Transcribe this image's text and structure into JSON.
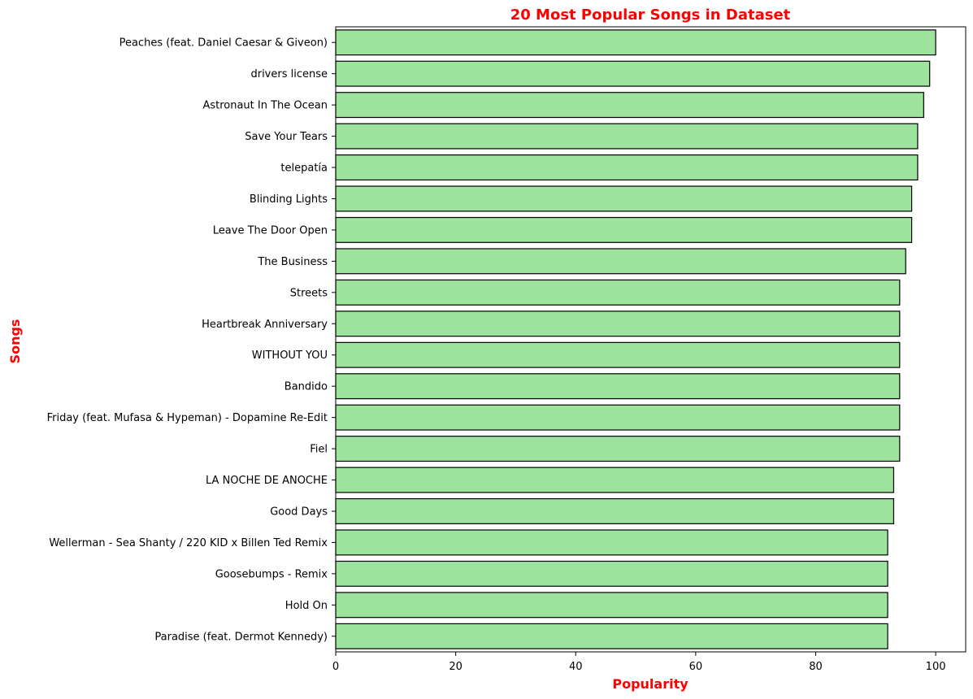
{
  "chart_data": {
    "type": "bar",
    "orientation": "horizontal",
    "title": "20 Most Popular Songs in Dataset",
    "xlabel": "Popularity",
    "ylabel": "Songs",
    "xlim": [
      0,
      105
    ],
    "xticks": [
      0,
      20,
      40,
      60,
      80,
      100
    ],
    "grid": false,
    "bar_color": "#9de39d",
    "edge_color": "#000000",
    "title_color": "#ff0000",
    "categories": [
      "Peaches (feat. Daniel Caesar & Giveon)",
      "drivers license",
      "Astronaut In The Ocean",
      "Save Your Tears",
      "telepatía",
      "Blinding Lights",
      "Leave The Door Open",
      "The Business",
      "Streets",
      "Heartbreak Anniversary",
      "WITHOUT YOU",
      "Bandido",
      "Friday (feat. Mufasa & Hypeman) - Dopamine Re-Edit",
      "Fiel",
      "LA NOCHE DE ANOCHE",
      "Good Days",
      "Wellerman - Sea Shanty / 220 KID x Billen Ted Remix",
      "Goosebumps - Remix",
      "Hold On",
      "Paradise (feat. Dermot Kennedy)"
    ],
    "values": [
      100,
      99,
      98,
      97,
      97,
      96,
      96,
      95,
      94,
      94,
      94,
      94,
      94,
      94,
      93,
      93,
      92,
      92,
      92,
      92
    ]
  }
}
